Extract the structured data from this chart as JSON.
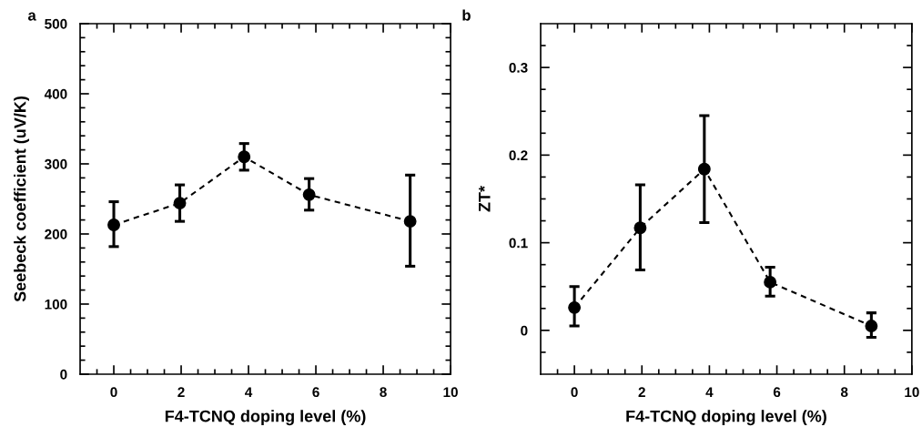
{
  "chart_data": [
    {
      "type": "line",
      "xlabel": "F4-TCNQ doping level (%)",
      "ylabel": "Seebeck coefficient (uV/K)",
      "annotations": [
        "a"
      ],
      "xlim": [
        -1,
        10
      ],
      "ylim": [
        0,
        500
      ],
      "marker": "circle",
      "line_style": "dashed",
      "grid": false,
      "legend": false,
      "xticks": [
        {
          "value": -0.5,
          "label": null
        },
        0,
        {
          "value": 0.5,
          "label": null
        },
        {
          "value": 1,
          "label": null
        },
        {
          "value": 1.5,
          "label": null
        },
        2,
        {
          "value": 2.5,
          "label": null
        },
        {
          "value": 3,
          "label": null
        },
        {
          "value": 3.5,
          "label": null
        },
        4,
        {
          "value": 4.5,
          "label": null
        },
        {
          "value": 5,
          "label": null
        },
        {
          "value": 5.5,
          "label": null
        },
        6,
        {
          "value": 6.5,
          "label": null
        },
        {
          "value": 7,
          "label": null
        },
        {
          "value": 7.5,
          "label": null
        },
        8,
        {
          "value": 8.5,
          "label": null
        },
        {
          "value": 9,
          "label": null
        },
        {
          "value": 9.5,
          "label": null
        },
        10
      ],
      "yticks": [
        0,
        {
          "value": 20,
          "label": null
        },
        {
          "value": 40,
          "label": null
        },
        {
          "value": 60,
          "label": null
        },
        {
          "value": 80,
          "label": null
        },
        100,
        {
          "value": 120,
          "label": null
        },
        {
          "value": 140,
          "label": null
        },
        {
          "value": 160,
          "label": null
        },
        {
          "value": 180,
          "label": null
        },
        200,
        {
          "value": 220,
          "label": null
        },
        {
          "value": 240,
          "label": null
        },
        {
          "value": 260,
          "label": null
        },
        {
          "value": 280,
          "label": null
        },
        300,
        {
          "value": 320,
          "label": null
        },
        {
          "value": 340,
          "label": null
        },
        {
          "value": 360,
          "label": null
        },
        {
          "value": 380,
          "label": null
        },
        400,
        {
          "value": 420,
          "label": null
        },
        {
          "value": 440,
          "label": null
        },
        {
          "value": 460,
          "label": null
        },
        {
          "value": 480,
          "label": null
        },
        500
      ],
      "series": [
        {
          "color": "#000000",
          "x": [
            0,
            1.96,
            3.87,
            5.8,
            8.8
          ],
          "values": [
            213,
            244,
            310,
            256,
            218
          ],
          "errors": [
            [
              182,
              246
            ],
            [
              218,
              270
            ],
            [
              291,
              329
            ],
            [
              234,
              279
            ],
            [
              154,
              284
            ]
          ]
        }
      ]
    },
    {
      "type": "line",
      "xlabel": "F4-TCNQ doping level (%)",
      "ylabel": "ZT*",
      "annotations": [
        "b"
      ],
      "xlim": [
        -1,
        10
      ],
      "ylim": [
        -0.05,
        0.35
      ],
      "marker": "circle",
      "line_style": "dashed",
      "grid": false,
      "legend": false,
      "xticks": [
        {
          "value": -0.5,
          "label": null
        },
        0,
        {
          "value": 0.5,
          "label": null
        },
        {
          "value": 1,
          "label": null
        },
        {
          "value": 1.5,
          "label": null
        },
        2,
        {
          "value": 2.5,
          "label": null
        },
        {
          "value": 3,
          "label": null
        },
        {
          "value": 3.5,
          "label": null
        },
        4,
        {
          "value": 4.5,
          "label": null
        },
        {
          "value": 5,
          "label": null
        },
        {
          "value": 5.5,
          "label": null
        },
        6,
        {
          "value": 6.5,
          "label": null
        },
        {
          "value": 7,
          "label": null
        },
        {
          "value": 7.5,
          "label": null
        },
        8,
        {
          "value": 8.5,
          "label": null
        },
        {
          "value": 9,
          "label": null
        },
        {
          "value": 9.5,
          "label": null
        },
        10
      ],
      "yticks": [
        {
          "value": -0.025,
          "label": null
        },
        0,
        {
          "value": 0.025,
          "label": null
        },
        {
          "value": 0.05,
          "label": null
        },
        {
          "value": 0.075,
          "label": null
        },
        0.1,
        {
          "value": 0.125,
          "label": null
        },
        {
          "value": 0.15,
          "label": null
        },
        {
          "value": 0.175,
          "label": null
        },
        0.2,
        {
          "value": 0.225,
          "label": null
        },
        {
          "value": 0.25,
          "label": null
        },
        {
          "value": 0.275,
          "label": null
        },
        0.3,
        {
          "value": 0.325,
          "label": null
        }
      ],
      "series": [
        {
          "color": "#000000",
          "x": [
            0,
            1.95,
            3.85,
            5.8,
            8.8
          ],
          "values": [
            0.026,
            0.117,
            0.184,
            0.055,
            0.005
          ],
          "errors": [
            [
              0.005,
              0.05
            ],
            [
              0.069,
              0.166
            ],
            [
              0.123,
              0.245
            ],
            [
              0.039,
              0.072
            ],
            [
              -0.008,
              0.02
            ]
          ]
        }
      ]
    }
  ]
}
